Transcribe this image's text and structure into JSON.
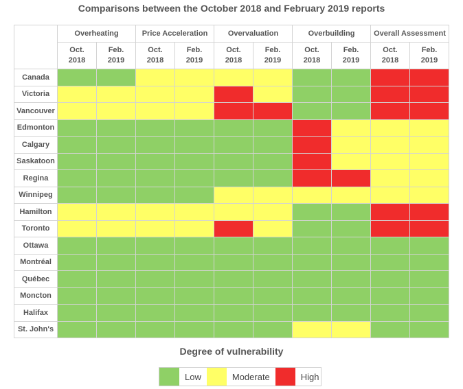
{
  "chart_data": {
    "type": "heatmap",
    "title": "Comparisons between the October 2018 and February 2019 reports",
    "groups": [
      "Overheating",
      "Price Acceleration",
      "Overvaluation",
      "Overbuilding",
      "Overall Assessment"
    ],
    "periods": [
      {
        "month": "Oct.",
        "year": "2018"
      },
      {
        "month": "Feb.",
        "year": "2019"
      }
    ],
    "rows": [
      "Canada",
      "Victoria",
      "Vancouver",
      "Edmonton",
      "Calgary",
      "Saskatoon",
      "Regina",
      "Winnipeg",
      "Hamilton",
      "Toronto",
      "Ottawa",
      "Montréal",
      "Québec",
      "Moncton",
      "Halifax",
      "St. John's"
    ],
    "levels": [
      [
        "low",
        "low",
        "mod",
        "mod",
        "mod",
        "mod",
        "low",
        "low",
        "high",
        "high"
      ],
      [
        "mod",
        "mod",
        "mod",
        "mod",
        "high",
        "mod",
        "low",
        "low",
        "high",
        "high"
      ],
      [
        "mod",
        "mod",
        "mod",
        "mod",
        "high",
        "high",
        "low",
        "low",
        "high",
        "high"
      ],
      [
        "low",
        "low",
        "low",
        "low",
        "low",
        "low",
        "high",
        "mod",
        "mod",
        "mod"
      ],
      [
        "low",
        "low",
        "low",
        "low",
        "low",
        "low",
        "high",
        "mod",
        "mod",
        "mod"
      ],
      [
        "low",
        "low",
        "low",
        "low",
        "low",
        "low",
        "high",
        "mod",
        "mod",
        "mod"
      ],
      [
        "low",
        "low",
        "low",
        "low",
        "low",
        "low",
        "high",
        "high",
        "mod",
        "mod"
      ],
      [
        "low",
        "low",
        "low",
        "low",
        "mod",
        "mod",
        "mod",
        "mod",
        "mod",
        "mod"
      ],
      [
        "mod",
        "mod",
        "mod",
        "mod",
        "mod",
        "mod",
        "low",
        "low",
        "high",
        "high"
      ],
      [
        "mod",
        "mod",
        "mod",
        "mod",
        "high",
        "mod",
        "low",
        "low",
        "high",
        "high"
      ],
      [
        "low",
        "low",
        "low",
        "low",
        "low",
        "low",
        "low",
        "low",
        "low",
        "low"
      ],
      [
        "low",
        "low",
        "low",
        "low",
        "low",
        "low",
        "low",
        "low",
        "low",
        "low"
      ],
      [
        "low",
        "low",
        "low",
        "low",
        "low",
        "low",
        "low",
        "low",
        "low",
        "low"
      ],
      [
        "low",
        "low",
        "low",
        "low",
        "low",
        "low",
        "low",
        "low",
        "low",
        "low"
      ],
      [
        "low",
        "low",
        "low",
        "low",
        "low",
        "low",
        "low",
        "low",
        "low",
        "low"
      ],
      [
        "low",
        "low",
        "low",
        "low",
        "low",
        "low",
        "mod",
        "mod",
        "low",
        "low"
      ]
    ],
    "legend_title": "Degree of vulnerability",
    "legend": [
      {
        "key": "low",
        "label": "Low",
        "color": "#8fd066"
      },
      {
        "key": "mod",
        "label": "Moderate",
        "color": "#ffff66"
      },
      {
        "key": "high",
        "label": "High",
        "color": "#f02c2c"
      }
    ],
    "grid": true
  }
}
